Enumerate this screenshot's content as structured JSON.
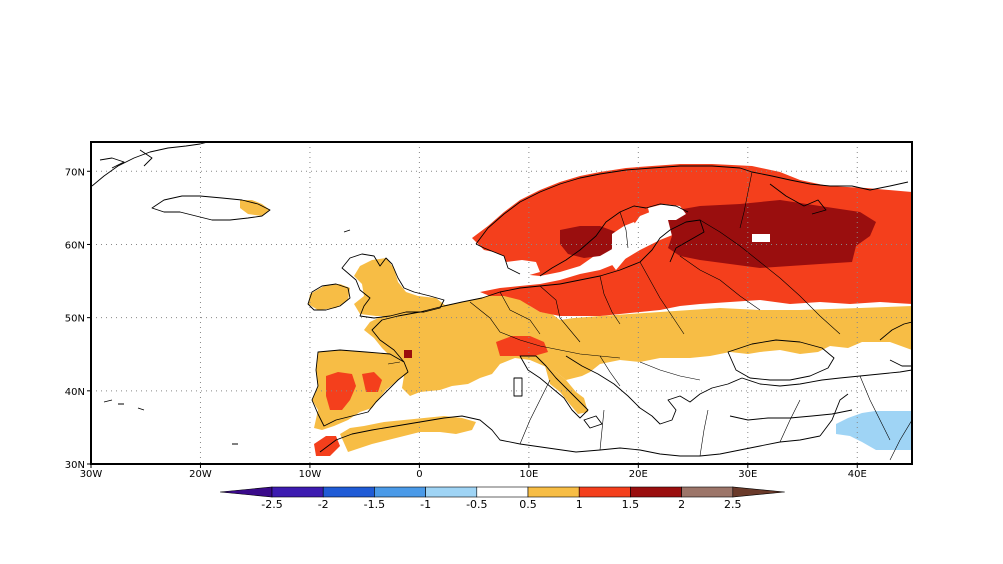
{
  "map": {
    "lon_range": [
      -30,
      45
    ],
    "lat_range": [
      30,
      74
    ],
    "grid": "dotted",
    "lat_ticks": [
      {
        "value": 30,
        "label": "30N"
      },
      {
        "value": 40,
        "label": "40N"
      },
      {
        "value": 50,
        "label": "50N"
      },
      {
        "value": 60,
        "label": "60N"
      },
      {
        "value": 70,
        "label": "70N"
      }
    ],
    "lon_ticks": [
      {
        "value": -30,
        "label": "30W"
      },
      {
        "value": -20,
        "label": "20W"
      },
      {
        "value": -10,
        "label": "10W"
      },
      {
        "value": 0,
        "label": "0"
      },
      {
        "value": 10,
        "label": "10E"
      },
      {
        "value": 20,
        "label": "20E"
      },
      {
        "value": 30,
        "label": "30E"
      },
      {
        "value": 40,
        "label": "40E"
      }
    ]
  },
  "colorbar": {
    "labels": [
      "-2.5",
      "-2",
      "-1.5",
      "-1",
      "-0.5",
      "0.5",
      "1",
      "1.5",
      "2",
      "2.5"
    ],
    "colors": [
      "#3c1bb0",
      "#1f5bd6",
      "#4a9ae8",
      "#9fd4f5",
      "#ffffff",
      "#f7bd45",
      "#f43f1c",
      "#9a0e0e",
      "#9c7569"
    ],
    "end_colors": [
      "#3a0a8a",
      "#6a3a2a"
    ]
  },
  "anomaly_colors": {
    "lt": "#9fd4f5",
    "c1": "#f7bd45",
    "c2": "#f43f1c",
    "c3": "#9a0e0e"
  }
}
